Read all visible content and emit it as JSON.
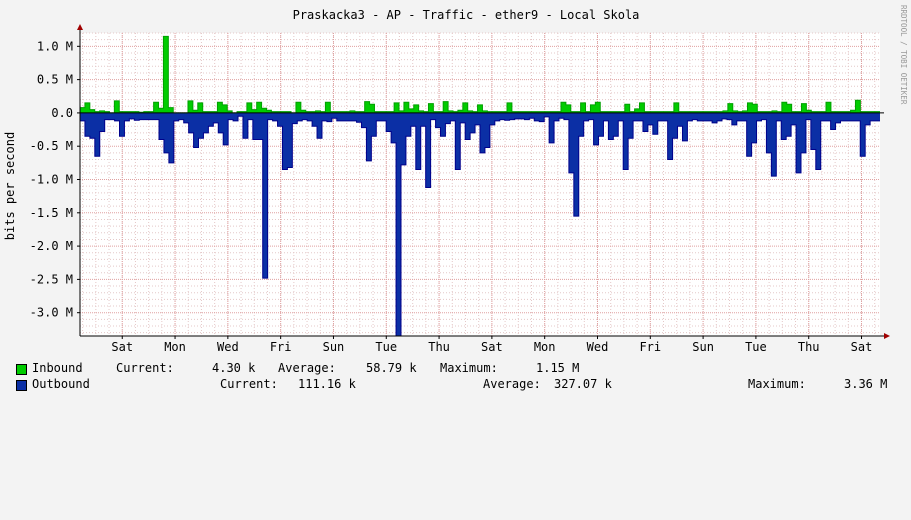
{
  "colors": {
    "inbound": "#00cc00",
    "inbound_edge": "#00a000",
    "outbound": "#0b2fa5",
    "outbound_edge": "#00008b",
    "grid_major": "#e0a0a0",
    "grid_minor": "#e4c8c8",
    "canvas": "#ffffff",
    "background": "#f3f3f3",
    "axis": "#000000",
    "arrow": "#a00000"
  },
  "watermark": "RRDTOOL / TOBI OETIKER",
  "chart_data": {
    "type": "area",
    "title": "Praskacka3 - AP - Traffic - ether9 - Local Skola",
    "ylabel": "bits per second",
    "xlabel": "",
    "y_unit": "M",
    "ylim": [
      -3.35,
      1.2
    ],
    "yticks": [
      1.0,
      0.5,
      0.0,
      -0.5,
      -1.0,
      -1.5,
      -2.0,
      -2.5,
      -3.0
    ],
    "ytick_labels": [
      "1.0 M",
      "0.5 M",
      "0.0",
      "-0.5 M",
      "-1.0 M",
      "-1.5 M",
      "-2.0 M",
      "-2.5 M",
      "-3.0 M"
    ],
    "x_unit": "day",
    "xlim": [
      0,
      15.15
    ],
    "xtick_labels": [
      "Sat",
      "Mon",
      "Wed",
      "Fri",
      "Sun",
      "Tue",
      "Thu",
      "Sat",
      "Mon",
      "Wed",
      "Fri",
      "Sun",
      "Tue",
      "Thu",
      "Sat"
    ],
    "xtick_positions": [
      0.8,
      1.8,
      2.8,
      3.8,
      4.8,
      5.8,
      6.8,
      7.8,
      8.8,
      9.8,
      10.8,
      11.8,
      12.8,
      13.8,
      14.8
    ],
    "grid": true,
    "series": [
      {
        "name": "Inbound",
        "values": [
          0.08,
          0.15,
          0.05,
          0.02,
          0.03,
          0.02,
          0.0,
          0.18,
          0.02,
          0.02,
          0.02,
          0.02,
          0.01,
          0.02,
          0.02,
          0.16,
          0.07,
          1.15,
          0.08,
          0.0,
          0.0,
          0.0,
          0.18,
          0.04,
          0.15,
          0.02,
          0.02,
          0.02,
          0.16,
          0.12,
          0.03,
          0.0,
          0.02,
          0.02,
          0.15,
          0.05,
          0.16,
          0.07,
          0.04,
          0.02,
          0.02,
          0.02,
          0.02,
          0.0,
          0.16,
          0.04,
          0.02,
          0.02,
          0.03,
          0.02,
          0.16,
          0.02,
          0.02,
          0.02,
          0.02,
          0.03,
          0.02,
          0.02,
          0.17,
          0.13,
          0.02,
          0.02,
          0.02,
          0.02,
          0.15,
          0.03,
          0.16,
          0.06,
          0.12,
          0.03,
          0.02,
          0.14,
          0.02,
          0.02,
          0.17,
          0.03,
          0.02,
          0.04,
          0.15,
          0.03,
          0.02,
          0.12,
          0.03,
          0.02,
          0.02,
          0.02,
          0.02,
          0.15,
          0.02,
          0.02,
          0.02,
          0.02,
          0.02,
          0.02,
          0.02,
          0.02,
          0.02,
          0.02,
          0.16,
          0.12,
          0.02,
          0.02,
          0.15,
          0.02,
          0.12,
          0.16,
          0.02,
          0.02,
          0.02,
          0.02,
          0.02,
          0.13,
          0.02,
          0.06,
          0.15,
          0.02,
          0.02,
          0.02,
          0.02,
          0.02,
          0.02,
          0.15,
          0.02,
          0.02,
          0.02,
          0.02,
          0.02,
          0.02,
          0.02,
          0.02,
          0.02,
          0.03,
          0.14,
          0.03,
          0.02,
          0.03,
          0.15,
          0.13,
          0.02,
          0.02,
          0.02,
          0.03,
          0.02,
          0.16,
          0.13,
          0.02,
          0.02,
          0.14,
          0.04,
          0.02,
          0.02,
          0.02,
          0.16,
          0.02,
          0.02,
          0.02,
          0.02,
          0.04,
          0.19,
          0.02,
          0.02,
          0.02,
          0.02
        ],
        "current": "4.30 k",
        "average": "58.79 k",
        "maximum": "1.15 M"
      },
      {
        "name": "Outbound",
        "values": [
          -0.12,
          -0.35,
          -0.38,
          -0.65,
          -0.28,
          -0.1,
          -0.1,
          -0.12,
          -0.35,
          -0.12,
          -0.09,
          -0.11,
          -0.1,
          -0.1,
          -0.1,
          -0.1,
          -0.4,
          -0.6,
          -0.75,
          -0.12,
          -0.1,
          -0.15,
          -0.3,
          -0.52,
          -0.38,
          -0.3,
          -0.2,
          -0.15,
          -0.3,
          -0.48,
          -0.1,
          -0.12,
          -0.05,
          -0.38,
          -0.1,
          -0.4,
          -0.4,
          -2.48,
          -0.1,
          -0.12,
          -0.2,
          -0.85,
          -0.82,
          -0.16,
          -0.12,
          -0.1,
          -0.12,
          -0.2,
          -0.38,
          -0.12,
          -0.13,
          -0.08,
          -0.12,
          -0.12,
          -0.12,
          -0.12,
          -0.14,
          -0.22,
          -0.72,
          -0.35,
          -0.12,
          -0.12,
          -0.28,
          -0.45,
          -3.35,
          -0.78,
          -0.35,
          -0.2,
          -0.85,
          -0.2,
          -1.12,
          -0.1,
          -0.22,
          -0.35,
          -0.16,
          -0.12,
          -0.85,
          -0.15,
          -0.4,
          -0.3,
          -0.18,
          -0.6,
          -0.52,
          -0.18,
          -0.12,
          -0.1,
          -0.11,
          -0.1,
          -0.09,
          -0.09,
          -0.1,
          -0.08,
          -0.12,
          -0.13,
          -0.06,
          -0.45,
          -0.12,
          -0.08,
          -0.1,
          -0.9,
          -1.55,
          -0.35,
          -0.12,
          -0.1,
          -0.48,
          -0.35,
          -0.12,
          -0.4,
          -0.35,
          -0.12,
          -0.85,
          -0.38,
          -0.12,
          -0.12,
          -0.28,
          -0.18,
          -0.32,
          -0.12,
          -0.12,
          -0.7,
          -0.38,
          -0.2,
          -0.42,
          -0.12,
          -0.1,
          -0.12,
          -0.12,
          -0.12,
          -0.15,
          -0.12,
          -0.09,
          -0.1,
          -0.18,
          -0.12,
          -0.12,
          -0.65,
          -0.45,
          -0.12,
          -0.1,
          -0.6,
          -0.95,
          -0.12,
          -0.4,
          -0.35,
          -0.18,
          -0.9,
          -0.6,
          -0.1,
          -0.55,
          -0.85,
          -0.12,
          -0.12,
          -0.25,
          -0.15,
          -0.12,
          -0.12,
          -0.12,
          -0.12,
          -0.65,
          -0.18,
          -0.12,
          -0.12
        ],
        "current": "111.16 k",
        "average": "327.07 k",
        "maximum": "3.36 M"
      }
    ]
  },
  "legend": {
    "inbound": {
      "name": "Inbound",
      "current_label": "Current:",
      "current": "4.30 k",
      "average_label": "Average:",
      "average": "58.79 k",
      "maximum_label": "Maximum:",
      "maximum": "1.15 M"
    },
    "outbound": {
      "name": "Outbound",
      "current_label": "Current:",
      "current": "111.16 k",
      "average_label": "Average:",
      "average": "327.07 k",
      "maximum_label": "Maximum:",
      "maximum": "3.36 M"
    }
  }
}
